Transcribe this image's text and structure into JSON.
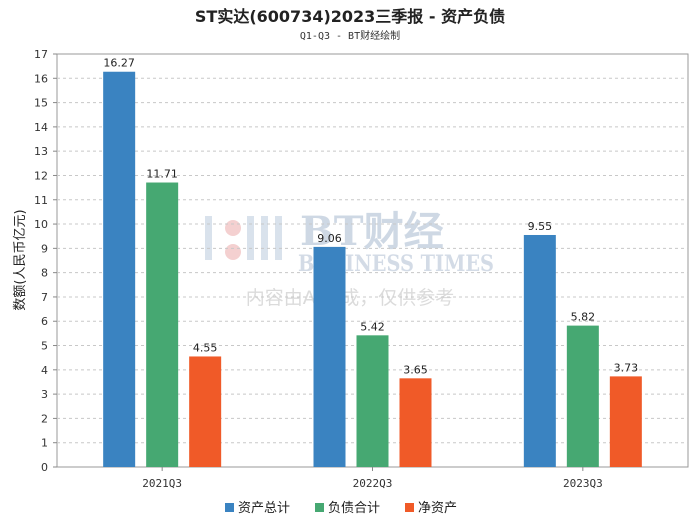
{
  "chart_data": {
    "type": "bar",
    "title": "ST实达(600734)2023三季报 - 资产负债",
    "subtitle": "Q1-Q3 - BT财经绘制",
    "ylabel": "数额(人民币亿元)",
    "xlabel": "",
    "ylim": [
      0,
      17
    ],
    "yticks": [
      0,
      1,
      2,
      3,
      4,
      5,
      6,
      7,
      8,
      9,
      10,
      11,
      12,
      13,
      14,
      15,
      16,
      17
    ],
    "grid": true,
    "legend_position": "bottom-center",
    "categories": [
      "2021Q3",
      "2022Q3",
      "2023Q3"
    ],
    "series": [
      {
        "name": "资产总计",
        "color": "#3a83c1",
        "values": [
          16.27,
          9.06,
          9.55
        ]
      },
      {
        "name": "负债合计",
        "color": "#46a872",
        "values": [
          11.71,
          5.42,
          5.82
        ]
      },
      {
        "name": "净资产",
        "color": "#f05a28",
        "values": [
          4.55,
          3.65,
          3.73
        ]
      }
    ]
  },
  "watermark": {
    "brand": "BT财经",
    "english": "BUSINESS TIMES",
    "notice": "内容由AI生成，仅供参考"
  }
}
